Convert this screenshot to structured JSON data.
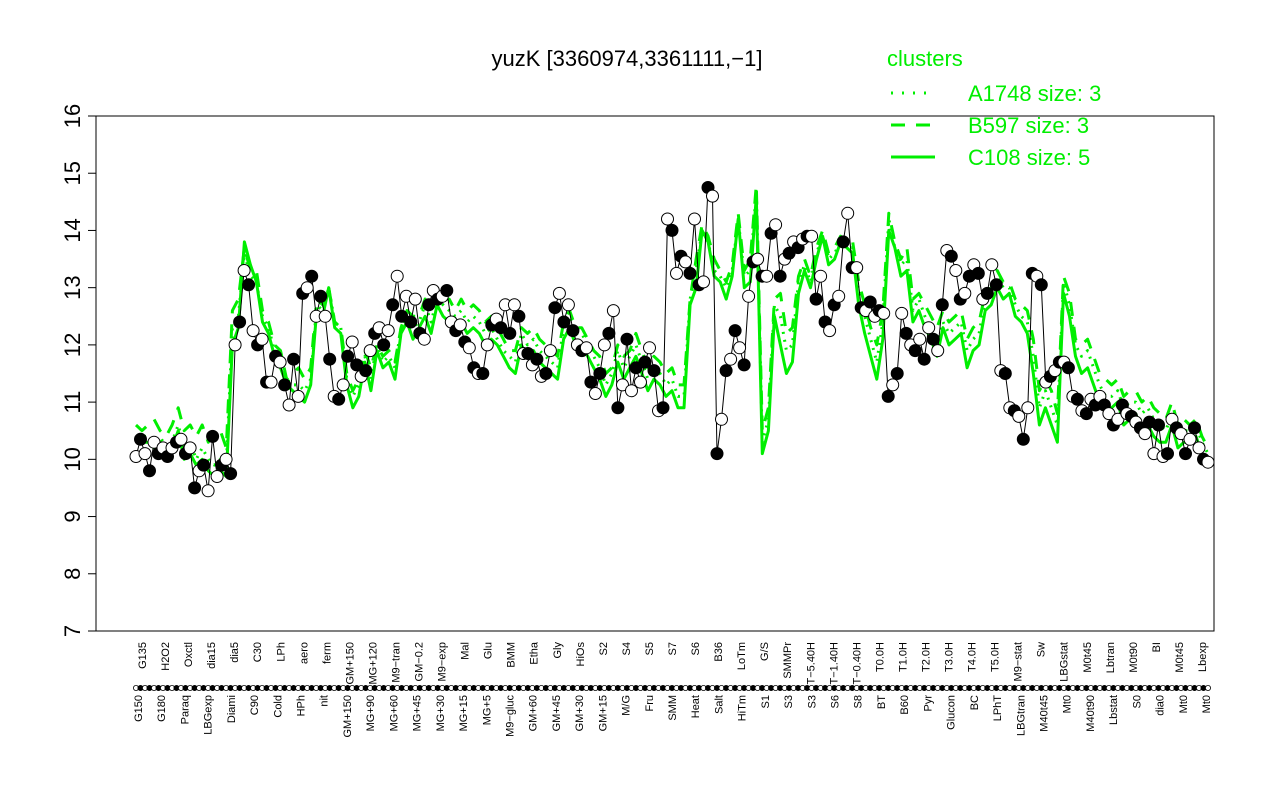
{
  "chart_data": {
    "type": "line",
    "title": "yuzK [3360974,3361111,−1]",
    "xlabel": "",
    "ylabel": "",
    "ylim": [
      7,
      16
    ],
    "yticks": [
      7,
      8,
      9,
      10,
      11,
      12,
      13,
      14,
      15,
      16
    ],
    "grid": false,
    "x_tick_labels_upper": [
      "G135",
      "H2O2",
      "Oxctl",
      "dia15",
      "dia5",
      "C30",
      "LPh",
      "aero",
      "ferm",
      "GM+150",
      "MG+120",
      "M9−tran",
      "GM−0.2",
      "M9−exp",
      "Mal",
      "Glu",
      "BMM",
      "Etha",
      "Gly",
      "HiOs",
      "S2",
      "S4",
      "S5",
      "S7",
      "S6",
      "B36",
      "LoTm",
      "G/S",
      "SMMPr",
      "T−5.40H",
      "T−1.40H",
      "T−0.40H",
      "T0.0H",
      "T1.0H",
      "T2.0H",
      "T3.0H",
      "T4.0H",
      "T5.0H",
      "M9−stat",
      "Sw",
      "LBGstat",
      "M0t45",
      "Lbtran",
      "M0t90",
      "BI",
      "M0t45",
      "Lbexp"
    ],
    "x_tick_labels_lower": [
      "G150",
      "G180",
      "Paraq",
      "LBGexp",
      "Diami",
      "C90",
      "Cold",
      "HPh",
      "nit",
      "GM+150",
      "MG+90",
      "MG+60",
      "MG+45",
      "MG+30",
      "MG+15",
      "MG+5",
      "M9−gluc",
      "GM+60",
      "GM+45",
      "GM+30",
      "GM+15",
      "M/G",
      "Fru",
      "SMM",
      "Heat",
      "Salt",
      "HiTm",
      "S1",
      "S3",
      "S3",
      "S6",
      "S8",
      "BT",
      "B60",
      "Pyr",
      "Glucon",
      "BC",
      "LPhT",
      "LBGtran",
      "M40t45",
      "Mt0",
      "M40t90",
      "Lbstat",
      "S0",
      "dia0",
      "Mt0",
      "Mt0"
    ],
    "legend": {
      "title": "clusters",
      "placement": "top-right",
      "entries": [
        "A1748 size: 3",
        "B597 size: 3",
        "C108 size: 5"
      ]
    },
    "colors": {
      "green": "#00ee00",
      "black": "#000000"
    },
    "series": [
      {
        "name": "C108 size: 5",
        "style": "solid",
        "values": [
          10.4,
          10.3,
          10.3,
          10.2,
          10.3,
          10.1,
          10.2,
          10.5,
          10.0,
          10.1,
          9.9,
          10.0,
          9.8,
          9.7,
          9.8,
          9.7,
          12.0,
          12.3,
          13.8,
          13.4,
          13.1,
          12.4,
          12.2,
          11.8,
          11.6,
          11.3,
          11.2,
          11.1,
          11.0,
          11.3,
          12.6,
          12.5,
          13.0,
          12.3,
          12.2,
          11.3,
          10.9,
          11.1,
          11.7,
          11.2,
          11.9,
          11.6,
          11.7,
          11.4,
          12.2,
          12.4,
          12.1,
          12.3,
          12.5,
          12.2,
          12.7,
          12.5,
          12.4,
          12.3,
          12.4,
          12.2,
          12.3,
          12.2,
          12.0,
          12.1,
          12.0,
          11.8,
          11.6,
          11.5,
          12.0,
          11.8,
          11.9,
          11.7,
          11.6,
          11.5,
          11.4,
          12.1,
          12.3,
          12.0,
          12.0,
          11.8,
          11.6,
          11.4,
          11.1,
          11.3,
          11.7,
          11.4,
          11.6,
          11.8,
          11.5,
          11.2,
          11.4,
          11.3,
          11.1,
          11.2,
          10.9,
          10.9,
          12.7,
          13.0,
          14.0,
          13.8,
          13.2,
          13.1,
          12.8,
          13.2,
          14.2,
          13.0,
          13.1,
          14.6,
          10.1,
          10.5,
          12.5,
          12.0,
          11.5,
          11.7,
          12.9,
          13.3,
          13.0,
          13.5,
          13.9,
          13.4,
          13.5,
          13.8,
          13.7,
          13.6,
          12.7,
          12.2,
          11.8,
          11.4,
          12.1,
          14.0,
          13.7,
          13.2,
          13.3,
          12.4,
          12.6,
          12.3,
          12.1,
          11.8,
          12.3,
          12.0,
          12.1,
          12.2,
          11.6,
          11.9,
          12.0,
          12.6,
          12.7,
          13.0,
          12.8,
          12.9,
          12.5,
          12.4,
          12.2,
          11.5,
          10.6,
          10.9,
          10.6,
          10.3,
          12.9,
          12.5,
          11.8,
          11.5,
          11.6,
          11.3,
          11.0,
          10.9,
          10.9,
          11.0,
          10.6,
          10.7,
          10.8,
          10.5,
          10.6,
          10.4,
          10.3,
          10.3,
          10.6,
          10.2,
          10.3,
          10.3,
          10.4,
          10.1,
          10.0
        ]
      },
      {
        "name": "B597 size: 3",
        "style": "dashed",
        "values": [
          10.6,
          10.5,
          10.6,
          10.7,
          10.5,
          10.4,
          10.6,
          10.9,
          10.5,
          10.6,
          10.4,
          10.6,
          10.3,
          10.5,
          10.5,
          10.2,
          12.6,
          12.8,
          13.7,
          13.3,
          13.3,
          12.6,
          12.4,
          12.0,
          11.9,
          11.4,
          11.5,
          11.6,
          11.4,
          11.6,
          12.8,
          12.7,
          13.0,
          12.4,
          12.3,
          11.5,
          11.2,
          11.4,
          11.9,
          11.6,
          12.0,
          11.8,
          11.9,
          11.7,
          12.3,
          12.6,
          12.5,
          12.5,
          12.8,
          12.6,
          12.9,
          12.8,
          12.8,
          12.6,
          12.8,
          12.6,
          12.7,
          12.6,
          12.4,
          12.5,
          12.3,
          12.1,
          11.9,
          11.9,
          12.3,
          12.2,
          12.3,
          12.1,
          12.0,
          11.9,
          11.8,
          12.4,
          12.6,
          12.3,
          12.3,
          12.1,
          11.9,
          11.8,
          11.5,
          11.6,
          12.0,
          11.8,
          11.9,
          12.2,
          11.9,
          11.6,
          11.8,
          11.7,
          11.5,
          11.6,
          11.3,
          11.3,
          12.8,
          13.5,
          14.1,
          13.9,
          13.5,
          13.3,
          13.1,
          13.4,
          14.3,
          13.3,
          13.5,
          14.8,
          10.5,
          10.9,
          12.8,
          12.9,
          12.2,
          12.3,
          13.2,
          13.5,
          13.2,
          13.7,
          14.0,
          13.6,
          13.7,
          13.9,
          13.8,
          13.8,
          13.1,
          12.7,
          12.3,
          12.0,
          12.6,
          14.3,
          13.8,
          13.5,
          13.7,
          12.8,
          12.9,
          12.7,
          12.5,
          12.3,
          12.6,
          12.4,
          12.5,
          12.6,
          12.1,
          12.3,
          12.4,
          12.9,
          13.0,
          13.3,
          13.1,
          13.1,
          12.8,
          12.7,
          12.6,
          12.1,
          11.2,
          11.4,
          11.2,
          10.8,
          13.2,
          12.9,
          12.1,
          12.0,
          12.1,
          11.8,
          11.5,
          11.4,
          11.3,
          11.4,
          11.1,
          11.2,
          11.2,
          11.0,
          11.1,
          10.9,
          10.8,
          10.7,
          11.0,
          10.6,
          10.7,
          10.6,
          10.7,
          10.4,
          10.2
        ]
      },
      {
        "name": "A1748 size: 3",
        "style": "dotted",
        "values": [
          10.4,
          10.4,
          10.4,
          10.3,
          10.4,
          10.2,
          10.3,
          10.6,
          10.2,
          10.3,
          10.0,
          10.2,
          10.0,
          9.9,
          10.0,
          9.9,
          12.3,
          12.5,
          13.6,
          13.2,
          13.1,
          12.5,
          12.3,
          11.9,
          11.8,
          11.4,
          11.3,
          11.3,
          11.2,
          11.4,
          12.7,
          12.6,
          13.0,
          12.4,
          12.3,
          11.4,
          11.1,
          11.3,
          11.8,
          11.4,
          12.0,
          11.7,
          11.8,
          11.6,
          12.3,
          12.5,
          12.3,
          12.4,
          12.7,
          12.4,
          12.8,
          12.7,
          12.6,
          12.5,
          12.6,
          12.4,
          12.5,
          12.4,
          12.2,
          12.3,
          12.1,
          11.9,
          11.8,
          11.7,
          12.2,
          12.0,
          12.1,
          11.9,
          11.8,
          11.7,
          11.6,
          12.3,
          12.5,
          12.2,
          12.2,
          12.0,
          11.8,
          11.6,
          11.3,
          11.5,
          11.9,
          11.6,
          11.8,
          12.0,
          11.7,
          11.4,
          11.6,
          11.5,
          11.3,
          11.4,
          11.1,
          11.1,
          12.8,
          13.3,
          14.0,
          13.8,
          13.3,
          13.2,
          13.0,
          13.3,
          14.2,
          13.2,
          13.3,
          14.7,
          10.3,
          10.7,
          12.7,
          12.5,
          11.9,
          12.0,
          13.1,
          13.4,
          13.1,
          13.6,
          13.9,
          13.5,
          13.6,
          13.8,
          13.7,
          13.7,
          12.9,
          12.5,
          12.1,
          11.7,
          12.4,
          14.2,
          13.7,
          13.4,
          13.5,
          12.6,
          12.8,
          12.5,
          12.3,
          12.0,
          12.4,
          12.2,
          12.3,
          12.4,
          11.9,
          12.1,
          12.2,
          12.8,
          12.9,
          13.2,
          13.0,
          13.0,
          12.7,
          12.5,
          12.4,
          11.8,
          10.9,
          11.2,
          10.9,
          10.6,
          13.1,
          12.7,
          12.0,
          11.8,
          11.9,
          11.6,
          11.3,
          11.1,
          11.1,
          11.2,
          10.9,
          11.0,
          11.0,
          10.8,
          10.9,
          10.7,
          10.6,
          10.5,
          10.8,
          10.4,
          10.5,
          10.5,
          10.6,
          10.3,
          10.1
        ]
      },
      {
        "name": "",
        "style": "black-points",
        "values": [
          10.05,
          10.35,
          10.1,
          9.8,
          10.3,
          10.1,
          10.2,
          10.05,
          10.2,
          10.3,
          10.35,
          10.1,
          10.2,
          9.5,
          9.8,
          9.9,
          9.45,
          10.4,
          9.7,
          9.9,
          10.0,
          9.75,
          12.0,
          12.4,
          13.3,
          13.05,
          12.25,
          12.0,
          12.1,
          11.35,
          11.35,
          11.8,
          11.7,
          11.3,
          10.95,
          11.75,
          11.1,
          12.9,
          13.0,
          13.2,
          12.5,
          12.85,
          12.5,
          11.75,
          11.1,
          11.05,
          11.3,
          11.8,
          12.05,
          11.65,
          11.45,
          11.55,
          11.9,
          12.2,
          12.3,
          12.0,
          12.25,
          12.7,
          13.2,
          12.5,
          12.85,
          12.4,
          12.8,
          12.2,
          12.1,
          12.7,
          12.95,
          12.8,
          12.85,
          12.95,
          12.4,
          12.25,
          12.35,
          12.05,
          11.95,
          11.6,
          11.5,
          11.5,
          12.0,
          12.35,
          12.45,
          12.3,
          12.7,
          12.2,
          12.7,
          12.5,
          11.85,
          11.85,
          11.65,
          11.75,
          11.45,
          11.5,
          11.9,
          12.65,
          12.9,
          12.4,
          12.7,
          12.25,
          12.0,
          11.9,
          11.95,
          11.35,
          11.15,
          11.5,
          12.0,
          12.2,
          12.6,
          10.9,
          11.3,
          12.1,
          11.2,
          11.6,
          11.35,
          11.7,
          11.95,
          11.55,
          10.85,
          10.9,
          14.2,
          14.0,
          13.25,
          13.55,
          13.45,
          13.25,
          14.2,
          13.05,
          13.1,
          14.75,
          14.6,
          10.1,
          10.7,
          11.55,
          11.75,
          12.25,
          11.95,
          11.65,
          12.85,
          13.45,
          13.5,
          13.2,
          13.2,
          13.95,
          14.1,
          13.2,
          13.5,
          13.6,
          13.8,
          13.7,
          13.85,
          13.9,
          13.9,
          12.8,
          13.2,
          12.4,
          12.25,
          12.7,
          12.85,
          13.8,
          14.3,
          13.35,
          13.35,
          12.65,
          12.6,
          12.75,
          12.5,
          12.6,
          12.55,
          11.1,
          11.3,
          11.5,
          12.55,
          12.2,
          12.0,
          11.9,
          12.1,
          11.75,
          12.3,
          12.1,
          11.9,
          12.7,
          13.65,
          13.55,
          13.3,
          12.8,
          12.9,
          13.2,
          13.4,
          13.25,
          12.8,
          12.9,
          13.4,
          13.05,
          11.55,
          11.5,
          10.9,
          10.85,
          10.75,
          10.35,
          10.9,
          13.25,
          13.2,
          13.05,
          11.35,
          11.45,
          11.55,
          11.7,
          11.7,
          11.6,
          11.1,
          11.05,
          10.85,
          10.8,
          11.05,
          10.95,
          11.1,
          10.95,
          10.8,
          10.6,
          10.7,
          10.95,
          10.8,
          10.75,
          10.65,
          10.55,
          10.45,
          10.65,
          10.1,
          10.6,
          10.05,
          10.1,
          10.7,
          10.55,
          10.45,
          10.1,
          10.35,
          10.55,
          10.2,
          10.0,
          9.95
        ]
      }
    ]
  }
}
